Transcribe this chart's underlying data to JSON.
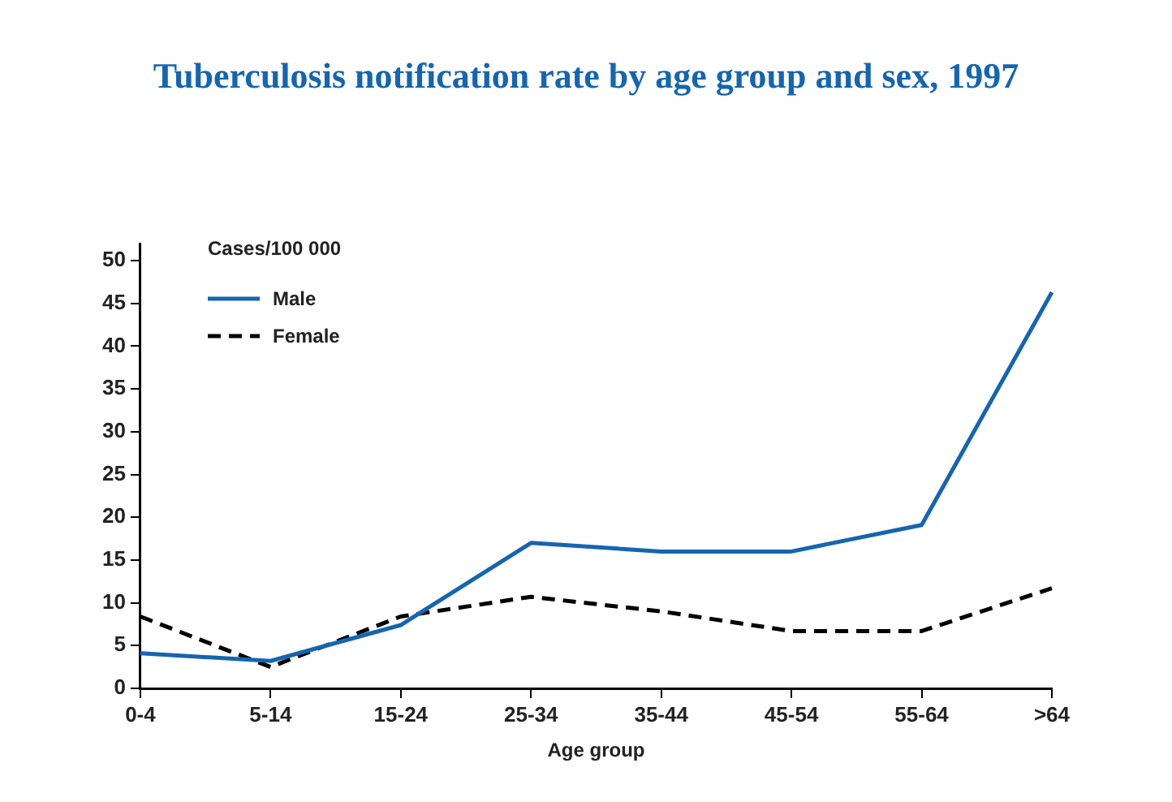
{
  "chart_data": {
    "type": "line",
    "title": "Tuberculosis notification rate by age group and sex, 1997",
    "xlabel": "Age group",
    "ylabel": "Cases/100 000",
    "categories": [
      "0-4",
      "5-14",
      "15-24",
      "25-34",
      "35-44",
      "45-54",
      "55-64",
      ">64"
    ],
    "series": [
      {
        "name": "Male",
        "color": "#1565b0",
        "line_style": "solid",
        "values": [
          4.1,
          3.2,
          7.4,
          17,
          16,
          16,
          19.1,
          46.3
        ]
      },
      {
        "name": "Female",
        "color": "#000000",
        "line_style": "dashed",
        "values": [
          8.4,
          2.5,
          8.4,
          10.7,
          9.0,
          6.7,
          6.7,
          11.7
        ]
      }
    ],
    "ylim": [
      0,
      52
    ],
    "yticks": [
      0,
      5,
      10,
      15,
      20,
      25,
      30,
      35,
      40,
      45,
      50
    ],
    "grid": false,
    "legend": "top left",
    "marker": "none"
  }
}
